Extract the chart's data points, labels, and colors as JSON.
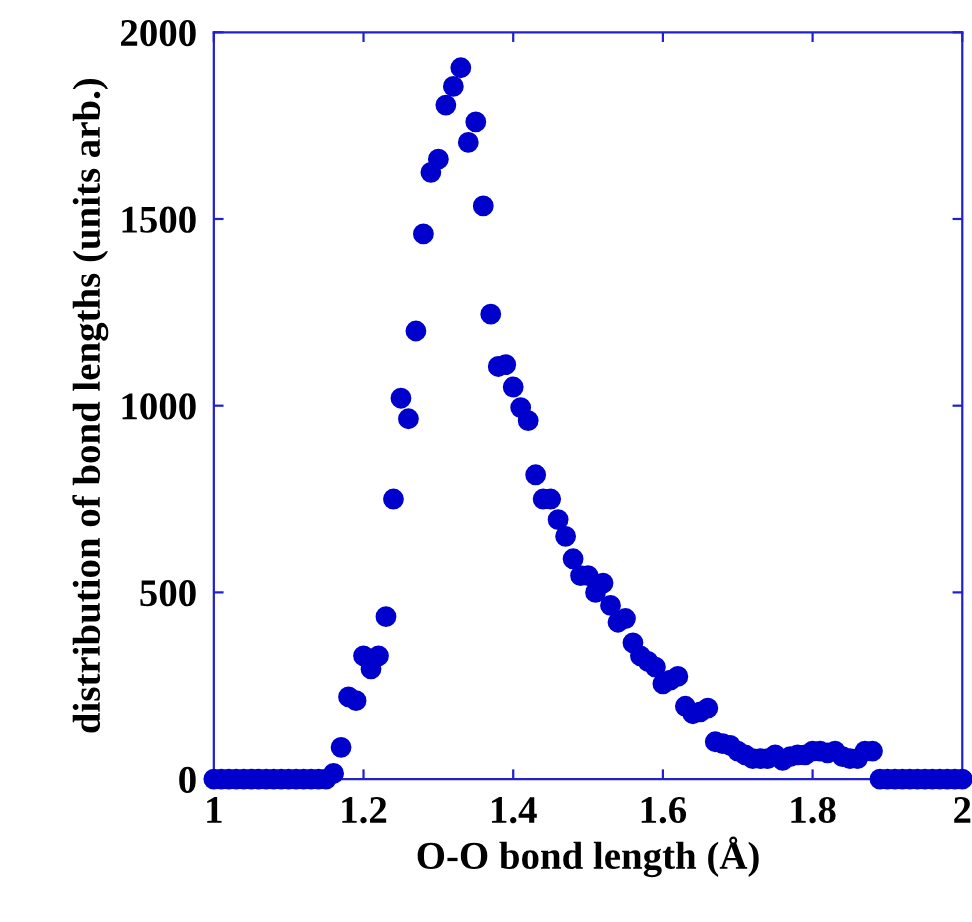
{
  "chart_data": {
    "type": "scatter",
    "xlabel": "O-O bond length (Å)",
    "ylabel": "distribution of bond lengths (units arb.)",
    "x": [
      1.0,
      1.01,
      1.02,
      1.03,
      1.04,
      1.05,
      1.06,
      1.07,
      1.08,
      1.09,
      1.1,
      1.11,
      1.12,
      1.13,
      1.14,
      1.15,
      1.16,
      1.17,
      1.18,
      1.19,
      1.2,
      1.21,
      1.22,
      1.23,
      1.24,
      1.25,
      1.26,
      1.27,
      1.28,
      1.29,
      1.3,
      1.31,
      1.32,
      1.33,
      1.34,
      1.35,
      1.36,
      1.37,
      1.38,
      1.39,
      1.4,
      1.41,
      1.42,
      1.43,
      1.44,
      1.45,
      1.46,
      1.47,
      1.48,
      1.49,
      1.5,
      1.51,
      1.52,
      1.53,
      1.54,
      1.55,
      1.56,
      1.57,
      1.58,
      1.59,
      1.6,
      1.61,
      1.62,
      1.63,
      1.64,
      1.65,
      1.66,
      1.67,
      1.68,
      1.69,
      1.7,
      1.71,
      1.72,
      1.73,
      1.74,
      1.75,
      1.76,
      1.77,
      1.78,
      1.79,
      1.8,
      1.81,
      1.82,
      1.83,
      1.84,
      1.85,
      1.86,
      1.87,
      1.88,
      1.89,
      1.9,
      1.91,
      1.92,
      1.93,
      1.94,
      1.95,
      1.96,
      1.97,
      1.98,
      1.99,
      2.0
    ],
    "series": [
      {
        "color": "#0000cc",
        "values": [
          0,
          0,
          0,
          0,
          0,
          0,
          0,
          0,
          0,
          0,
          0,
          0,
          0,
          0,
          0,
          0,
          15,
          85,
          220,
          210,
          330,
          295,
          330,
          435,
          750,
          1020,
          965,
          1200,
          1460,
          1625,
          1660,
          1805,
          1855,
          1905,
          1705,
          1760,
          1535,
          1245,
          1105,
          1110,
          1050,
          995,
          960,
          815,
          750,
          750,
          695,
          650,
          590,
          545,
          545,
          500,
          525,
          465,
          420,
          430,
          365,
          330,
          315,
          300,
          255,
          265,
          275,
          195,
          175,
          180,
          190,
          100,
          95,
          90,
          75,
          65,
          55,
          55,
          55,
          65,
          50,
          60,
          65,
          65,
          75,
          75,
          70,
          75,
          60,
          55,
          55,
          75,
          75,
          0,
          0,
          0,
          0,
          0,
          0,
          0,
          0,
          0,
          0,
          0,
          0
        ]
      }
    ],
    "xlim": [
      1,
      2
    ],
    "ylim": [
      0,
      2000
    ],
    "xticks": [
      1,
      1.2,
      1.4,
      1.6,
      1.8,
      2
    ],
    "yticks": [
      0,
      500,
      1000,
      1500,
      2000
    ],
    "marker": "circle",
    "grid": false
  }
}
